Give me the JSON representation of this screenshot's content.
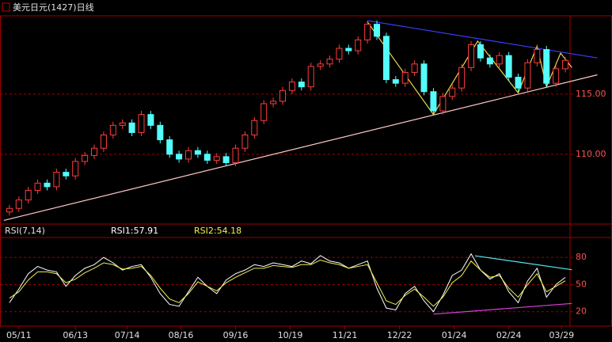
{
  "chart_data": [
    {
      "type": "candlestick",
      "title": "美元日元(1427)日线",
      "open": [
        105.2,
        105.5,
        106.2,
        107.0,
        107.6,
        107.3,
        108.5,
        108.2,
        109.4,
        109.9,
        110.5,
        111.6,
        112.4,
        112.6,
        111.8,
        113.3,
        112.4,
        111.2,
        110.0,
        109.6,
        110.3,
        110.0,
        109.5,
        109.8,
        109.3,
        110.5,
        111.6,
        112.8,
        114.2,
        114.4,
        115.3,
        116.0,
        115.6,
        117.3,
        117.5,
        117.9,
        118.8,
        118.6,
        119.5,
        120.8,
        119.8,
        116.2,
        115.9,
        116.8,
        117.5,
        115.2,
        113.6,
        114.8,
        115.5,
        117.2,
        119.1,
        118.0,
        117.5,
        118.2,
        116.4,
        115.5,
        117.6,
        118.7,
        115.9,
        117.1
      ],
      "high": [
        105.8,
        106.5,
        107.3,
        107.9,
        107.9,
        108.8,
        108.8,
        109.7,
        110.2,
        110.8,
        111.9,
        112.7,
        112.9,
        112.9,
        113.6,
        113.6,
        112.7,
        111.5,
        110.3,
        110.6,
        110.6,
        110.3,
        110.1,
        110.1,
        110.8,
        111.9,
        113.1,
        114.5,
        114.7,
        115.6,
        116.3,
        116.3,
        117.6,
        117.8,
        118.2,
        119.1,
        119.1,
        119.8,
        121.1,
        121.1,
        120.1,
        116.5,
        117.1,
        117.8,
        117.8,
        115.5,
        115.1,
        115.8,
        117.5,
        119.4,
        119.4,
        118.3,
        118.5,
        118.5,
        116.7,
        117.9,
        119.0,
        119.0,
        117.4,
        118.1
      ],
      "low": [
        104.9,
        105.2,
        105.9,
        106.7,
        107.0,
        107.0,
        107.9,
        107.9,
        109.1,
        109.6,
        110.2,
        111.3,
        112.1,
        111.5,
        111.5,
        112.1,
        110.9,
        109.7,
        109.3,
        109.3,
        109.7,
        109.2,
        109.2,
        109.0,
        109.0,
        110.2,
        111.3,
        112.5,
        113.9,
        114.1,
        115.0,
        115.3,
        115.3,
        117.0,
        117.2,
        117.6,
        118.3,
        118.3,
        119.2,
        119.5,
        115.9,
        115.6,
        115.6,
        116.5,
        114.9,
        113.3,
        113.3,
        114.5,
        115.2,
        116.9,
        117.7,
        117.2,
        117.2,
        116.1,
        115.2,
        115.2,
        117.3,
        115.6,
        115.6,
        116.8
      ],
      "close": [
        105.5,
        106.2,
        107.0,
        107.6,
        107.3,
        108.5,
        108.2,
        109.4,
        109.9,
        110.5,
        111.6,
        112.4,
        112.6,
        111.8,
        113.3,
        112.4,
        111.2,
        110.0,
        109.6,
        110.3,
        110.0,
        109.5,
        109.8,
        109.3,
        110.5,
        111.6,
        112.8,
        114.2,
        114.4,
        115.3,
        116.0,
        115.6,
        117.3,
        117.5,
        117.9,
        118.8,
        118.6,
        119.5,
        120.8,
        119.8,
        116.2,
        115.9,
        116.8,
        117.5,
        115.2,
        113.6,
        114.8,
        115.5,
        117.2,
        119.1,
        118.0,
        117.5,
        118.2,
        116.4,
        115.5,
        117.6,
        118.7,
        115.9,
        117.1,
        117.8
      ],
      "up_color": "#ff3c3c",
      "down_color": "#54fcfc",
      "xlim": [
        -1,
        59.5
      ],
      "ylim": [
        104.2,
        121.5
      ],
      "yticks": [
        {
          "value": 110,
          "label": "110.00"
        },
        {
          "value": 115,
          "label": "115.00"
        }
      ],
      "grid": true,
      "trendlines": [
        {
          "color": "#3c3cff",
          "points": [
            [
              38,
              121.1
            ],
            [
              62.4,
              118.0
            ]
          ]
        },
        {
          "color": "#ffc8c8",
          "points": [
            [
              -0.6,
              104.5
            ],
            [
              62.4,
              116.6
            ]
          ]
        },
        {
          "color": "#e8d84a",
          "points": [
            [
              38,
              121.0
            ],
            [
              45,
              113.3
            ],
            [
              49.7,
              119.4
            ],
            [
              54,
              115.1
            ],
            [
              56,
              119.0
            ],
            [
              57,
              115.6
            ],
            [
              58.5,
              118.4
            ],
            [
              59.7,
              117.2
            ]
          ]
        }
      ]
    },
    {
      "type": "line",
      "title": "RSI(7,14)",
      "series": [
        {
          "name": "RSI1:57.91",
          "color": "#ffffff",
          "values": [
            30,
            45,
            62,
            70,
            66,
            64,
            48,
            60,
            68,
            72,
            80,
            74,
            66,
            70,
            72,
            58,
            40,
            28,
            26,
            42,
            58,
            48,
            40,
            55,
            62,
            66,
            72,
            70,
            74,
            72,
            70,
            76,
            73,
            82,
            76,
            74,
            68,
            72,
            76,
            46,
            24,
            22,
            40,
            48,
            32,
            20,
            38,
            60,
            66,
            84,
            66,
            56,
            62,
            42,
            30,
            54,
            68,
            36,
            50,
            57.91
          ]
        },
        {
          "name": "RSI2:54.18",
          "color": "#f0f050",
          "values": [
            35,
            42,
            55,
            64,
            64,
            62,
            52,
            56,
            63,
            68,
            74,
            72,
            67,
            68,
            70,
            60,
            46,
            34,
            30,
            40,
            53,
            48,
            43,
            52,
            58,
            63,
            68,
            68,
            71,
            70,
            69,
            72,
            72,
            77,
            74,
            72,
            68,
            70,
            72,
            52,
            32,
            28,
            38,
            45,
            36,
            26,
            36,
            52,
            60,
            76,
            66,
            58,
            60,
            46,
            36,
            50,
            62,
            42,
            48,
            54.18
          ]
        }
      ],
      "xlim": [
        -1,
        59.5
      ],
      "ylim": [
        4,
        102
      ],
      "yticks": [
        20,
        50,
        80
      ],
      "grid": true,
      "xticks": [
        {
          "value": 1,
          "label": "05/11"
        },
        {
          "value": 7,
          "label": "06/13"
        },
        {
          "value": 12.5,
          "label": "07/14"
        },
        {
          "value": 18.2,
          "label": "08/16"
        },
        {
          "value": 24,
          "label": "09/16"
        },
        {
          "value": 29.8,
          "label": "10/19"
        },
        {
          "value": 35.6,
          "label": "11/21"
        },
        {
          "value": 41.4,
          "label": "12/22"
        },
        {
          "value": 47.2,
          "label": "01/24"
        },
        {
          "value": 53,
          "label": "02/24"
        },
        {
          "value": 58.6,
          "label": "03/29"
        }
      ],
      "trendlines": [
        {
          "color": "#54e8f0",
          "points": [
            [
              49.4,
              81.8
            ],
            [
              59.7,
              66.4
            ]
          ]
        },
        {
          "color": "#e040e0",
          "points": [
            [
              45,
              17.3
            ],
            [
              59.7,
              29.1
            ]
          ]
        }
      ]
    }
  ]
}
